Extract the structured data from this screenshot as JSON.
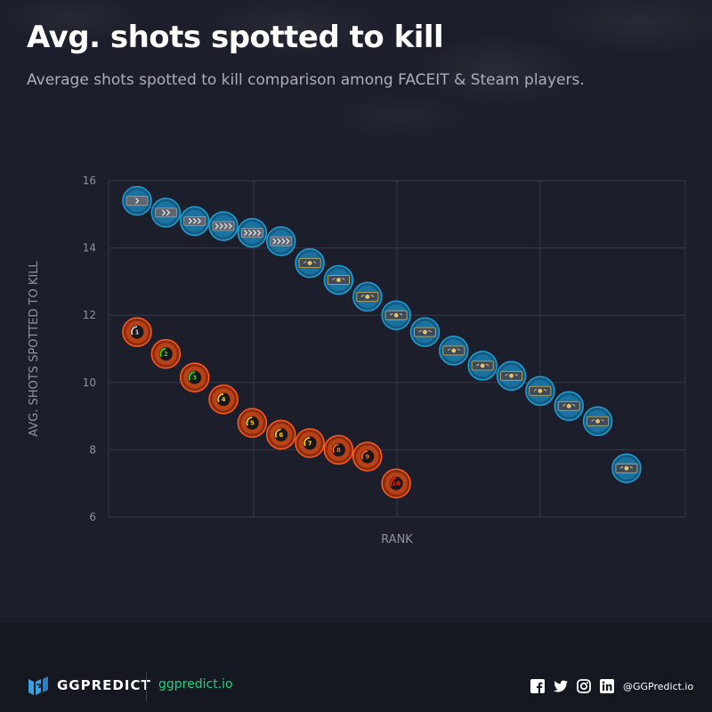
{
  "header": {
    "title": "Avg. shots spotted to kill",
    "subtitle": "Average shots spotted to kill comparison among FACEIT & Steam players."
  },
  "colors": {
    "background": "#1c1f2b",
    "grid": "#343848",
    "steam_series": "#1e9fd6",
    "faceit_series": "#ff5a1f",
    "accent_green": "#19d47f"
  },
  "chart_data": {
    "type": "scatter",
    "title": "",
    "xlabel": "RANK",
    "ylabel": "AVG. SHOTS SPOTTED TO KILL",
    "ylim": [
      6,
      16
    ],
    "yticks": [
      6,
      8,
      10,
      12,
      14,
      16
    ],
    "grid": true,
    "series": [
      {
        "name": "",
        "marker": "steam-rank-badge",
        "x": [
          1,
          2,
          3,
          4,
          5,
          6,
          7,
          8,
          9,
          10,
          11,
          12,
          13,
          14,
          15,
          16,
          17,
          18
        ],
        "y": [
          15.4,
          15.05,
          14.8,
          14.65,
          14.45,
          14.2,
          13.55,
          13.05,
          12.55,
          12.0,
          11.5,
          10.95,
          10.5,
          10.2,
          9.75,
          9.3,
          8.85,
          7.45
        ]
      },
      {
        "name": "",
        "marker": "faceit-level-badge",
        "labels": [
          "1",
          "2",
          "3",
          "4",
          "5",
          "6",
          "7",
          "8",
          "9",
          "10"
        ],
        "x": [
          1,
          2,
          3,
          4,
          5,
          6,
          7,
          8,
          9,
          10
        ],
        "y": [
          11.5,
          10.85,
          10.15,
          9.5,
          8.8,
          8.45,
          8.2,
          8.0,
          7.8,
          7.0
        ]
      }
    ]
  },
  "footer": {
    "brand": "GGPREDICT",
    "site": "ggpredict.io",
    "handle": "@GGPredict.io",
    "socials": [
      "facebook-icon",
      "twitter-icon",
      "instagram-icon",
      "linkedin-icon"
    ]
  }
}
